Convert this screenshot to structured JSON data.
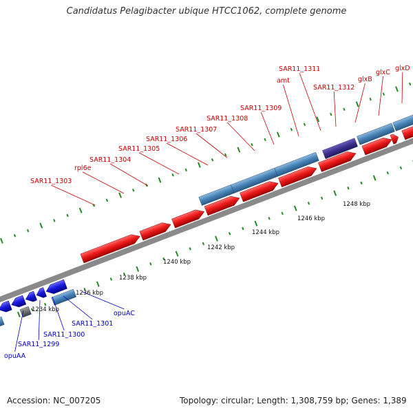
{
  "title": "Candidatus Pelagibacter ubique HTCC1062, complete genome",
  "scale_ticks": [
    "1234 kbp",
    "1236 kbp",
    "1238 kbp",
    "1240 kbp",
    "1242 kbp",
    "1244 kbp",
    "1246 kbp",
    "1248 kbp"
  ],
  "genes_forward": [
    "SAR11_1303",
    "rpl6e",
    "SAR11_1304",
    "SAR11_1305",
    "SAR11_1306",
    "SAR11_1307",
    "SAR11_1308",
    "SAR11_1309",
    "amt",
    "SAR11_1311",
    "SAR11_1312",
    "glxB",
    "glxC",
    "glxD"
  ],
  "genes_reverse": [
    "opuAA",
    "SAR11_1299",
    "SAR11_1300",
    "SAR11_1301",
    "opuAC"
  ],
  "footer": {
    "accession_label": "Accession:",
    "accession": "NC_007205",
    "topology_label": "Topology:",
    "topology": "circular",
    "length_label": "Length:",
    "length": "1,308,759 bp",
    "genes_label": "Genes:",
    "genes": "1,389"
  },
  "colors": {
    "forward_cds": "#ee1c1c",
    "reverse_cds": "#1a1adc",
    "gene_bar": "#4682b4",
    "rna_feature": "#3c2f8c",
    "unknown_feature": "#707070",
    "backbone": "#8a8a8a",
    "tick": "#1e8c1e",
    "forward_label": "#cc0000",
    "reverse_label": "#0000cc"
  }
}
